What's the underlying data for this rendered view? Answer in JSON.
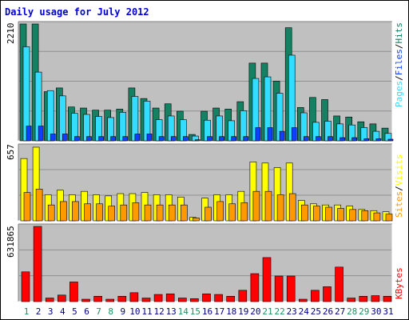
{
  "chart_data": {
    "type": "bar",
    "title": "Daily usage for July 2012",
    "categories": [
      "1",
      "2",
      "3",
      "4",
      "5",
      "6",
      "7",
      "8",
      "9",
      "10",
      "11",
      "12",
      "13",
      "14",
      "15",
      "16",
      "17",
      "18",
      "19",
      "20",
      "21",
      "22",
      "23",
      "24",
      "25",
      "26",
      "27",
      "28",
      "29",
      "30",
      "31"
    ],
    "weekend_days": [
      "1",
      "7",
      "8",
      "14",
      "15",
      "21",
      "22",
      "28",
      "29"
    ],
    "panels": [
      {
        "name": "hits-files-pages",
        "axis_max_label": "2210",
        "ylim": [
          0,
          2210
        ],
        "legend": [
          "Pages",
          "/",
          "Files",
          "/",
          "Hits"
        ],
        "series": [
          {
            "name": "Hits",
            "color": "#148262",
            "values": [
              2210,
              2210,
              930,
              1000,
              640,
              620,
              580,
              580,
              600,
              1000,
              800,
              620,
              700,
              560,
              120,
              560,
              620,
              600,
              740,
              1470,
              1470,
              1130,
              2140,
              630,
              820,
              780,
              470,
              450,
              360,
              320,
              240
            ]
          },
          {
            "name": "Files",
            "color": "#33ddff",
            "values": [
              1780,
              1300,
              950,
              850,
              520,
              500,
              460,
              440,
              540,
              840,
              750,
              400,
              470,
              400,
              90,
              390,
              470,
              380,
              570,
              1180,
              1210,
              900,
              1620,
              530,
              350,
              370,
              320,
              300,
              250,
              180,
              140
            ]
          },
          {
            "name": "Pages",
            "color": "#1040ff",
            "values": [
              280,
              280,
              130,
              130,
              80,
              80,
              80,
              80,
              80,
              130,
              130,
              80,
              80,
              80,
              20,
              80,
              80,
              80,
              80,
              250,
              250,
              180,
              250,
              80,
              80,
              80,
              60,
              60,
              40,
              40,
              30
            ]
          }
        ]
      },
      {
        "name": "visits-sites",
        "axis_max_label": "657",
        "ylim": [
          0,
          657
        ],
        "legend": [
          "Sites",
          "/",
          "Visits"
        ],
        "series": [
          {
            "name": "Visits",
            "color": "#ffff00",
            "values": [
              550,
              650,
              230,
              270,
              230,
              260,
              230,
              220,
              240,
              240,
              250,
              230,
              230,
              210,
              30,
              200,
              230,
              230,
              260,
              520,
              510,
              470,
              510,
              180,
              150,
              140,
              140,
              130,
              100,
              90,
              80
            ]
          },
          {
            "name": "Sites",
            "color": "#ff9900",
            "values": [
              250,
              280,
              140,
              170,
              170,
              150,
              150,
              130,
              140,
              160,
              140,
              140,
              140,
              140,
              25,
              120,
              170,
              150,
              160,
              260,
              260,
              230,
              240,
              140,
              130,
              120,
              110,
              100,
              90,
              70,
              60
            ]
          }
        ]
      },
      {
        "name": "kbytes",
        "axis_max_label": "631865",
        "ylim": [
          0,
          631865
        ],
        "legend": [
          "KBytes"
        ],
        "series": [
          {
            "name": "KBytes",
            "color": "#ff0000",
            "values": [
              250000,
              631865,
              30000,
              55000,
              165000,
              20000,
              45000,
              20000,
              45000,
              75000,
              30000,
              60000,
              65000,
              30000,
              25000,
              65000,
              60000,
              45000,
              95000,
              235000,
              370000,
              215000,
              215000,
              20000,
              95000,
              125000,
              290000,
              30000,
              45000,
              50000,
              45000
            ]
          }
        ]
      }
    ]
  }
}
